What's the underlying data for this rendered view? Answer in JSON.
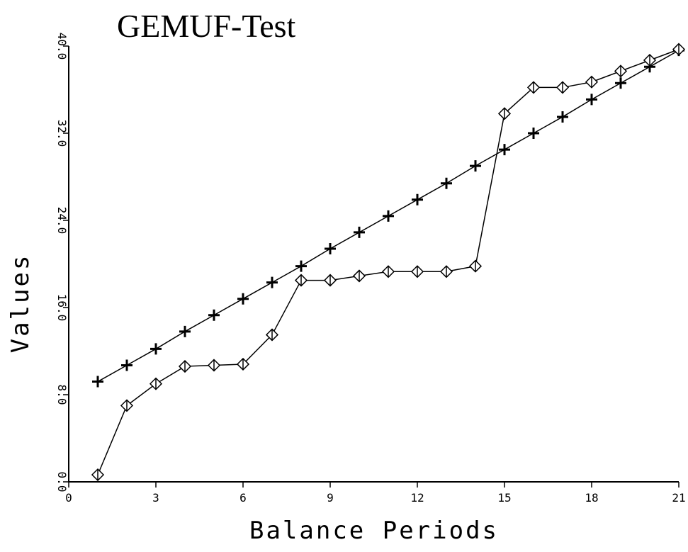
{
  "chart_data": {
    "type": "line",
    "title": "GEMUF-Test",
    "x_label": "Balance Periods",
    "y_label": "Values",
    "x": [
      1,
      2,
      3,
      4,
      5,
      6,
      7,
      8,
      9,
      10,
      11,
      12,
      13,
      14,
      15,
      16,
      17,
      18,
      19,
      20,
      21
    ],
    "series": [
      {
        "color": "#000000",
        "marker": "plus",
        "values": [
          9.2,
          10.7,
          12.2,
          13.8,
          15.3,
          16.8,
          18.3,
          19.8,
          21.4,
          22.9,
          24.4,
          25.9,
          27.4,
          29.0,
          30.5,
          32.0,
          33.5,
          35.1,
          36.6,
          38.1,
          39.6
        ]
      },
      {
        "color": "#000000",
        "marker": "diamond",
        "values": [
          0.65,
          7.0,
          9.0,
          10.6,
          10.7,
          10.8,
          13.5,
          18.5,
          18.5,
          18.9,
          19.3,
          19.3,
          19.3,
          19.8,
          33.8,
          36.2,
          36.2,
          36.7,
          37.7,
          38.7,
          39.7
        ]
      }
    ],
    "xlim": [
      0,
      21
    ],
    "xticks": [
      0,
      3,
      6,
      9,
      12,
      15,
      18,
      21
    ],
    "ylim": [
      0,
      40
    ],
    "yticks": [
      {
        "value": 0,
        "label": "0.0"
      },
      {
        "value": 8,
        "label": "8.0"
      },
      {
        "value": 16,
        "label": "16.0"
      },
      {
        "value": 24,
        "label": "24.0"
      },
      {
        "value": 32,
        "label": "32.0"
      },
      {
        "value": 40,
        "label": "40.0"
      }
    ],
    "grid": false
  }
}
